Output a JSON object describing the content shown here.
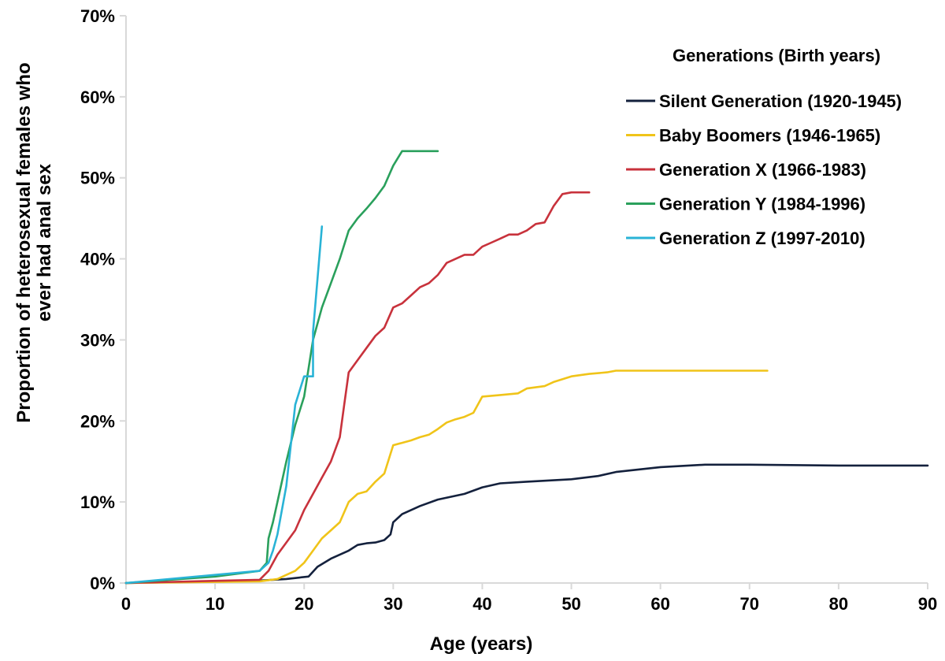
{
  "chart_data": {
    "type": "line",
    "title": "",
    "xlabel": "Age (years)",
    "ylabel_lines": [
      "Proportion of heterosexual females who",
      "ever had anal sex"
    ],
    "xlim": [
      0,
      90
    ],
    "ylim": [
      0,
      70
    ],
    "x_ticks": [
      0,
      10,
      20,
      30,
      40,
      50,
      60,
      70,
      80,
      90
    ],
    "x_tick_labels": [
      "0",
      "10",
      "20",
      "30",
      "40",
      "50",
      "60",
      "70",
      "80",
      "90"
    ],
    "y_ticks": [
      0,
      10,
      20,
      30,
      40,
      50,
      60,
      70
    ],
    "y_tick_labels": [
      "0%",
      "10%",
      "20%",
      "30%",
      "40%",
      "50%",
      "60%",
      "70%"
    ],
    "grid": false,
    "legend": {
      "title": "Generations (Birth years)",
      "placement": "top-right"
    },
    "series": [
      {
        "name": "Silent Generation (1920-1945)",
        "color": "#14213d",
        "x": [
          0,
          15,
          18,
          20.5,
          21.5,
          23,
          25,
          26,
          27,
          28,
          29,
          29.7,
          30,
          31,
          33,
          35,
          38,
          40,
          42,
          45,
          50,
          53,
          55,
          60,
          65,
          70,
          80,
          90
        ],
        "y": [
          0,
          0.3,
          0.5,
          0.8,
          2,
          3,
          4,
          4.7,
          4.9,
          5,
          5.3,
          6,
          7.5,
          8.5,
          9.5,
          10.3,
          11,
          11.8,
          12.3,
          12.5,
          12.8,
          13.2,
          13.7,
          14.3,
          14.6,
          14.6,
          14.5,
          14.5
        ]
      },
      {
        "name": "Baby Boomers (1946-1965)",
        "color": "#f0c419",
        "x": [
          0,
          15,
          17,
          18,
          19,
          20,
          21,
          22,
          23,
          24,
          25,
          26,
          27,
          28,
          29,
          30,
          31,
          32,
          33,
          34,
          35,
          36,
          37,
          38,
          39,
          40,
          42,
          44,
          45,
          47,
          48,
          50,
          52,
          54,
          55,
          60,
          65,
          72
        ],
        "y": [
          0,
          0.2,
          0.5,
          1,
          1.5,
          2.5,
          4,
          5.5,
          6.5,
          7.5,
          10,
          11,
          11.3,
          12.5,
          13.5,
          17,
          17.3,
          17.6,
          18,
          18.3,
          19,
          19.8,
          20.2,
          20.5,
          21,
          23,
          23.2,
          23.4,
          24,
          24.3,
          24.8,
          25.5,
          25.8,
          26,
          26.2,
          26.2,
          26.2,
          26.2
        ]
      },
      {
        "name": "Generation X (1966-1983)",
        "color": "#c8323c",
        "x": [
          0,
          15,
          16,
          17,
          18,
          19,
          20,
          21,
          22,
          23,
          24,
          24.5,
          25,
          26,
          27,
          28,
          29,
          30,
          31,
          32,
          33,
          34,
          35,
          36,
          37,
          38,
          39,
          40,
          41,
          42,
          43,
          44,
          45,
          46,
          47,
          48,
          49,
          50,
          52
        ],
        "y": [
          0,
          0.4,
          1.5,
          3.5,
          5,
          6.5,
          9,
          11,
          13,
          15,
          18,
          22,
          26,
          27.5,
          29,
          30.5,
          31.5,
          34,
          34.5,
          35.5,
          36.5,
          37,
          38,
          39.5,
          40,
          40.5,
          40.5,
          41.5,
          42,
          42.5,
          43,
          43,
          43.5,
          44.3,
          44.5,
          46.5,
          48,
          48.2,
          48.2
        ]
      },
      {
        "name": "Generation Y (1984-1996)",
        "color": "#2aa05c",
        "x": [
          0,
          10,
          15,
          15.8,
          16,
          16.5,
          17,
          18,
          19,
          20,
          21,
          22,
          23,
          24,
          25,
          26,
          27,
          28,
          29,
          30,
          31,
          32,
          35
        ],
        "y": [
          0,
          0.8,
          1.5,
          2.5,
          5.5,
          7.5,
          10,
          15,
          19.5,
          23,
          30,
          34,
          37,
          40,
          43.5,
          45,
          46.2,
          47.5,
          49,
          51.5,
          53.3,
          53.3,
          53.3
        ]
      },
      {
        "name": "Generation Z (1997-2010)",
        "color": "#29b3d6",
        "x": [
          0,
          10,
          15,
          16,
          16.5,
          17,
          18,
          19,
          20,
          21,
          21,
          22
        ],
        "y": [
          0,
          1,
          1.5,
          2.5,
          4,
          6,
          12,
          22,
          25.5,
          25.5,
          31,
          44
        ]
      }
    ]
  }
}
